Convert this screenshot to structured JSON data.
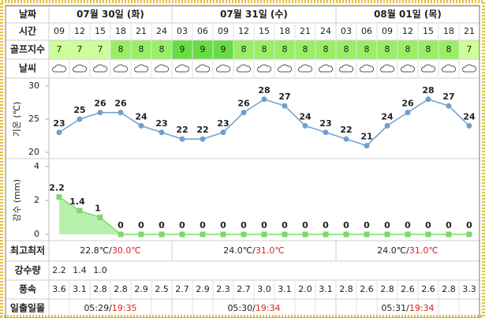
{
  "header": {
    "date_label": "날짜",
    "days": [
      "07월 30일 (화)",
      "07월 31일 (수)",
      "08월 01일 (목)"
    ]
  },
  "time_label": "시간",
  "times": [
    "09",
    "12",
    "15",
    "18",
    "21",
    "24",
    "03",
    "06",
    "09",
    "12",
    "15",
    "18",
    "21",
    "24",
    "03",
    "06",
    "09",
    "12",
    "15",
    "18",
    "21"
  ],
  "golf_label": "골프지수",
  "golf_index": [
    7,
    7,
    7,
    8,
    8,
    8,
    9,
    9,
    9,
    8,
    8,
    8,
    8,
    8,
    8,
    8,
    8,
    8,
    8,
    8,
    7
  ],
  "golf_colors": {
    "7": "#ccff99",
    "8": "#99ee66",
    "9": "#66dd44"
  },
  "weather_label": "날씨",
  "temperature": {
    "axis_label": "기온 (℃)",
    "ylim": [
      20,
      30
    ],
    "yticks": [
      20,
      25,
      30
    ],
    "color": "#6f9fd0",
    "values": [
      23,
      25,
      26,
      26,
      24,
      23,
      22,
      22,
      23,
      26,
      28,
      27,
      24,
      23,
      22,
      21,
      24,
      26,
      28,
      27,
      24
    ]
  },
  "precipitation": {
    "axis_label": "강수 (mm)",
    "ylim": [
      0,
      4
    ],
    "yticks": [
      0,
      2,
      4
    ],
    "color": "#7fd86a",
    "values": [
      2.2,
      1.4,
      1,
      0,
      0,
      0,
      0,
      0,
      0,
      0,
      0,
      0,
      0,
      0,
      0,
      0,
      0,
      0,
      0,
      0,
      0
    ]
  },
  "maxmin_label": "최고최저",
  "maxmin": [
    {
      "low": "22.8℃/",
      "high": "30.0℃"
    },
    {
      "low": "24.0℃/",
      "high": "31.0℃"
    },
    {
      "low": "24.0℃/",
      "high": "31.0℃"
    }
  ],
  "precip_label": "강수량",
  "precip_amounts": [
    "2.2",
    "1.4",
    "1.0"
  ],
  "wind_label": "풍속",
  "wind": [
    "3.6",
    "3.1",
    "2.8",
    "2.8",
    "2.9",
    "2.5",
    "2.7",
    "2.9",
    "2.3",
    "2.7",
    "3.0",
    "3.1",
    "2.0",
    "3.1",
    "2.8",
    "2.6",
    "2.8",
    "2.6",
    "2.6",
    "2.8",
    "3.3"
  ],
  "sun_label": "일출일몰",
  "sun": [
    {
      "rise": "05:29/",
      "set": "19:35"
    },
    {
      "rise": "05:30/",
      "set": "19:34"
    },
    {
      "rise": "05:31/",
      "set": "19:34"
    }
  ]
}
